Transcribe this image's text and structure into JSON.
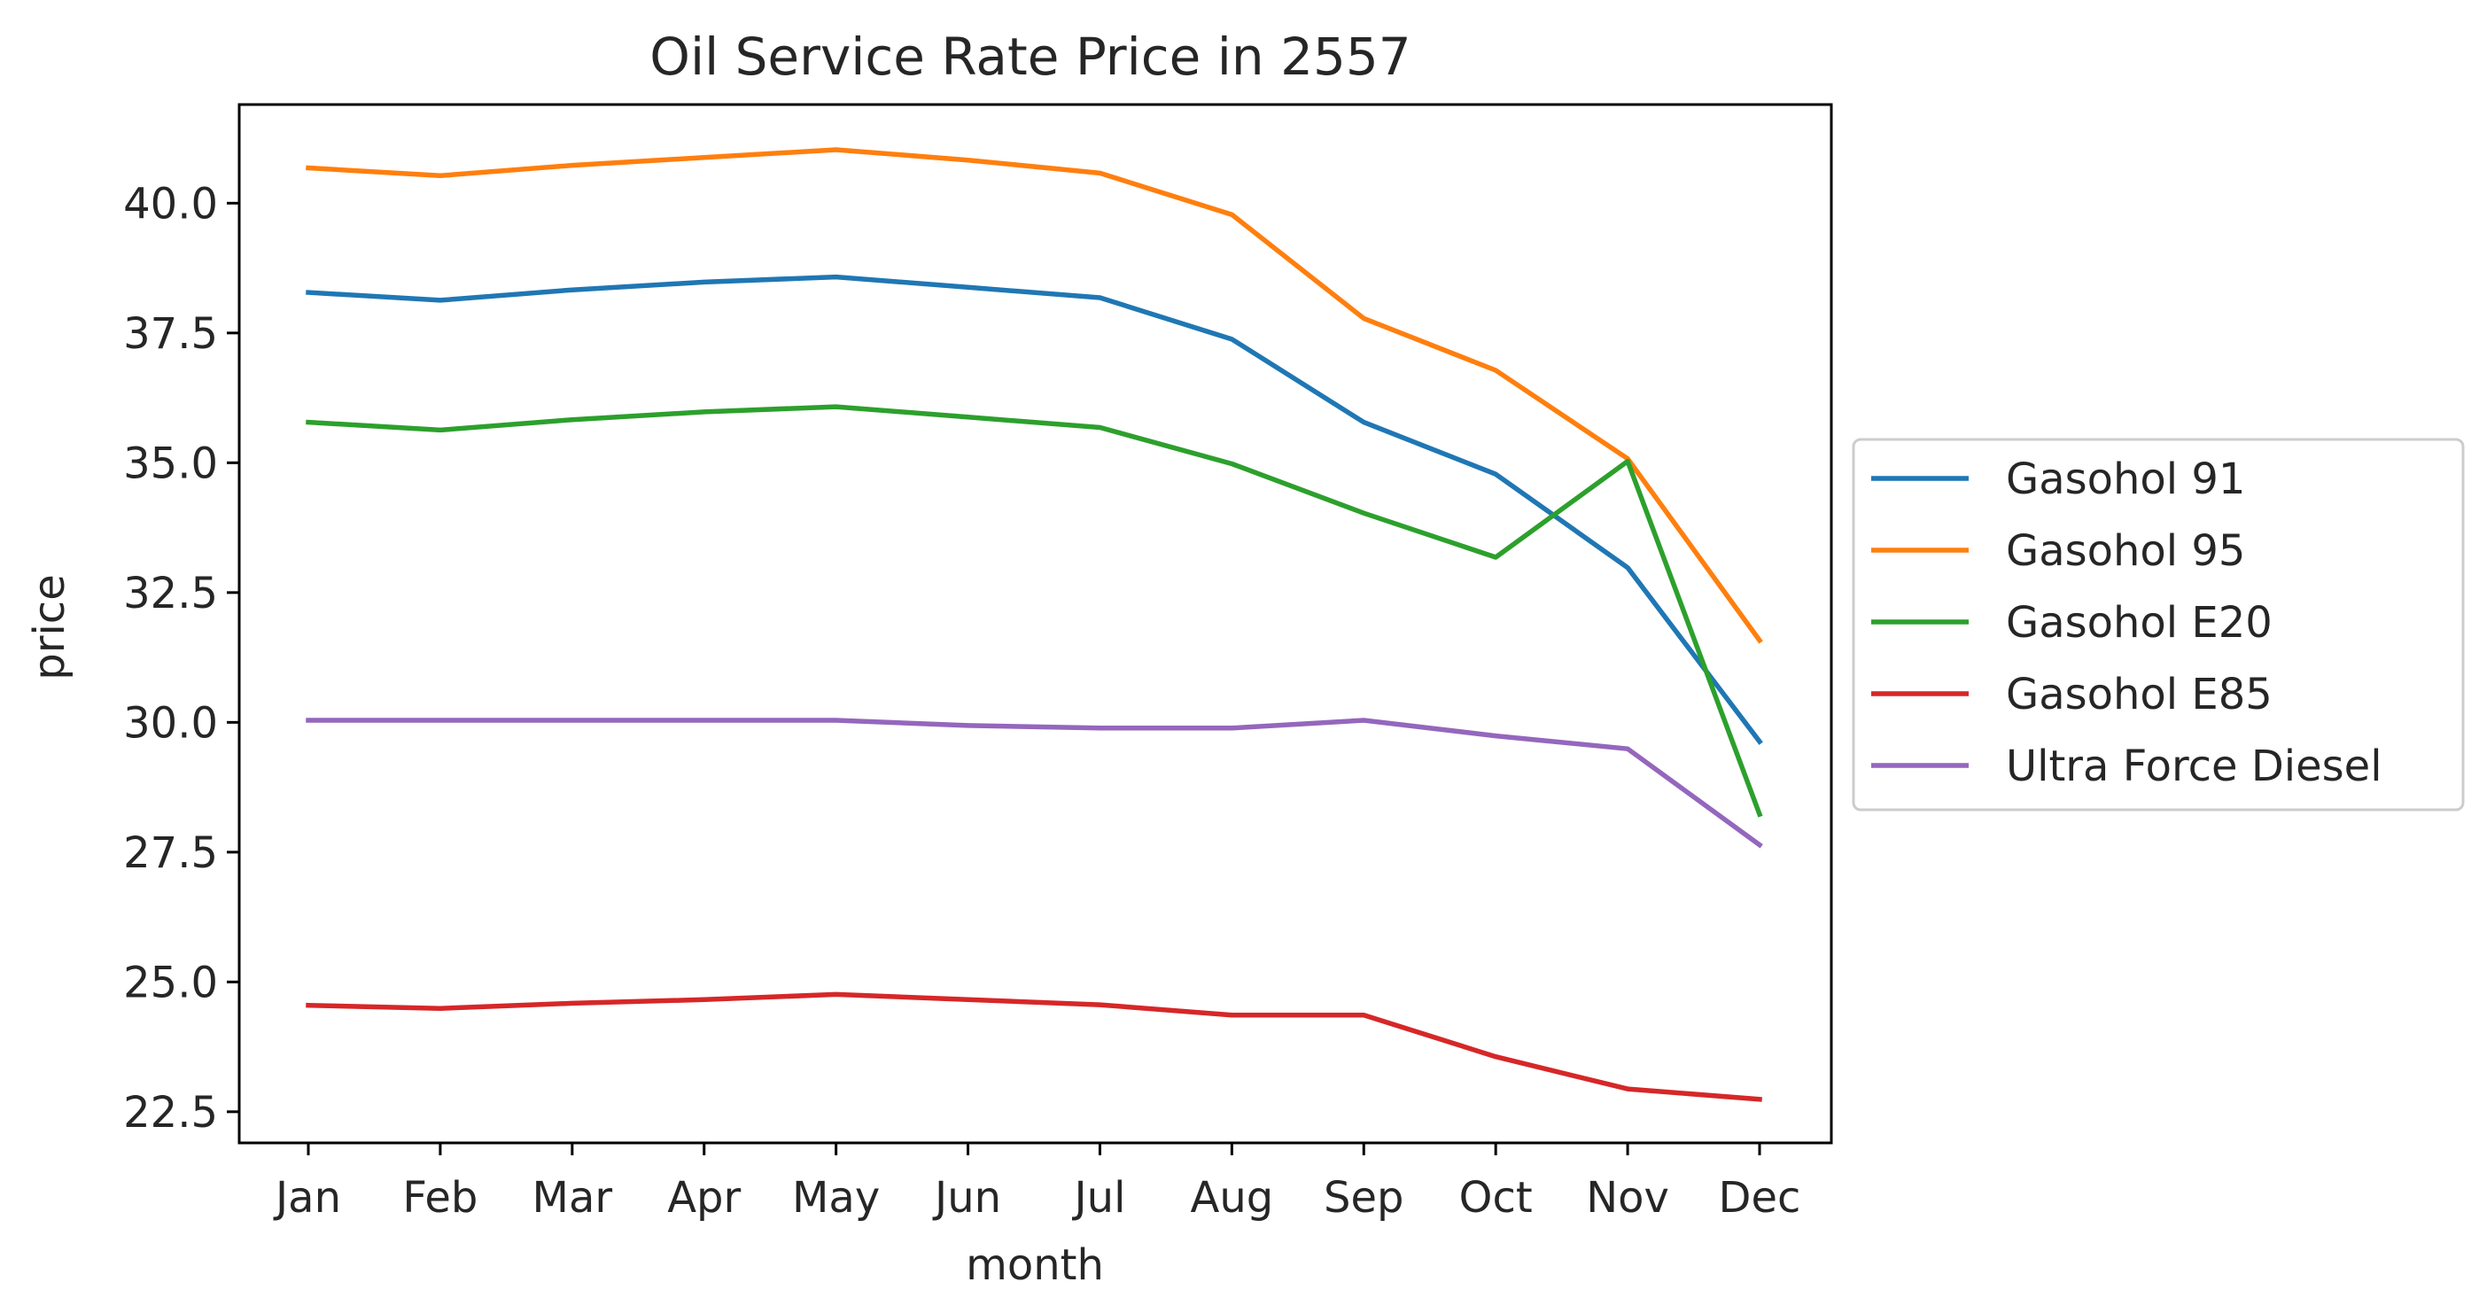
{
  "chart_data": {
    "type": "line",
    "title": "Oil Service Rate Price in 2557",
    "xlabel": "month",
    "ylabel": "price",
    "categories": [
      "Jan",
      "Feb",
      "Mar",
      "Apr",
      "May",
      "Jun",
      "Jul",
      "Aug",
      "Sep",
      "Oct",
      "Nov",
      "Dec"
    ],
    "ylim": [
      21.9,
      41.9
    ],
    "yticks": [
      "22.5",
      "25.0",
      "27.5",
      "30.0",
      "32.5",
      "35.0",
      "37.5",
      "40.0"
    ],
    "grid": false,
    "legend_position": "right",
    "series": [
      {
        "name": "Gasohol 91",
        "color": "#1f77b4",
        "values": [
          38.28,
          38.13,
          38.33,
          38.48,
          38.58,
          38.38,
          38.18,
          37.38,
          35.78,
          34.78,
          32.98,
          29.63
        ]
      },
      {
        "name": "Gasohol 95",
        "color": "#ff7f0e",
        "values": [
          40.68,
          40.53,
          40.73,
          40.88,
          41.03,
          40.83,
          40.58,
          39.78,
          37.78,
          36.78,
          35.08,
          31.58
        ]
      },
      {
        "name": "Gasohol E20",
        "color": "#2ca02c",
        "values": [
          35.78,
          35.63,
          35.83,
          35.98,
          36.08,
          35.88,
          35.68,
          34.98,
          34.03,
          33.18,
          35.03,
          28.23
        ]
      },
      {
        "name": "Gasohol E85",
        "color": "#d62728",
        "values": [
          24.55,
          24.49,
          24.59,
          24.66,
          24.76,
          24.66,
          24.56,
          24.36,
          24.36,
          23.56,
          22.94,
          22.74
        ]
      },
      {
        "name": "Ultra Force Diesel",
        "color": "#9467bd",
        "values": [
          30.04,
          30.04,
          30.04,
          30.04,
          30.04,
          29.94,
          29.89,
          29.89,
          30.04,
          29.74,
          29.49,
          27.64
        ]
      }
    ]
  }
}
